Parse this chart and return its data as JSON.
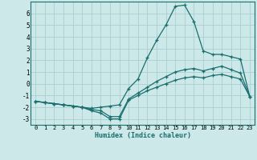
{
  "title": "",
  "xlabel": "Humidex (Indice chaleur)",
  "ylabel": "",
  "background_color": "#cce8e8",
  "grid_color": "#aacece",
  "line_color": "#1a6e6e",
  "xlim": [
    -0.5,
    23.5
  ],
  "ylim": [
    -3.5,
    7.0
  ],
  "yticks": [
    -3,
    -2,
    -1,
    0,
    1,
    2,
    3,
    4,
    5,
    6
  ],
  "xticks": [
    0,
    1,
    2,
    3,
    4,
    5,
    6,
    7,
    8,
    9,
    10,
    11,
    12,
    13,
    14,
    15,
    16,
    17,
    18,
    19,
    20,
    21,
    22,
    23
  ],
  "line1_x": [
    0,
    1,
    2,
    3,
    4,
    5,
    6,
    7,
    8,
    9,
    10,
    11,
    12,
    13,
    14,
    15,
    16,
    17,
    18,
    19,
    20,
    21,
    22,
    23
  ],
  "line1_y": [
    -1.5,
    -1.6,
    -1.7,
    -1.8,
    -1.9,
    -2.0,
    -2.1,
    -2.0,
    -1.9,
    -1.8,
    -0.4,
    0.4,
    2.2,
    3.7,
    5.0,
    6.6,
    6.7,
    5.3,
    2.8,
    2.5,
    2.5,
    2.3,
    2.1,
    -1.1
  ],
  "line2_x": [
    0,
    1,
    2,
    3,
    4,
    5,
    6,
    7,
    8,
    9,
    10,
    11,
    12,
    13,
    14,
    15,
    16,
    17,
    18,
    19,
    20,
    21,
    22,
    23
  ],
  "line2_y": [
    -1.5,
    -1.6,
    -1.7,
    -1.8,
    -1.9,
    -2.0,
    -2.2,
    -2.3,
    -2.8,
    -2.8,
    -1.3,
    -0.8,
    -0.3,
    0.2,
    0.6,
    1.0,
    1.2,
    1.3,
    1.1,
    1.3,
    1.5,
    1.2,
    0.9,
    -1.1
  ],
  "line3_x": [
    0,
    1,
    2,
    3,
    4,
    5,
    6,
    7,
    8,
    9,
    10,
    11,
    12,
    13,
    14,
    15,
    16,
    17,
    18,
    19,
    20,
    21,
    22,
    23
  ],
  "line3_y": [
    -1.5,
    -1.6,
    -1.7,
    -1.8,
    -1.9,
    -2.0,
    -2.3,
    -2.5,
    -3.0,
    -3.0,
    -1.4,
    -1.0,
    -0.6,
    -0.3,
    0.0,
    0.3,
    0.5,
    0.6,
    0.5,
    0.7,
    0.8,
    0.6,
    0.4,
    -1.1
  ]
}
